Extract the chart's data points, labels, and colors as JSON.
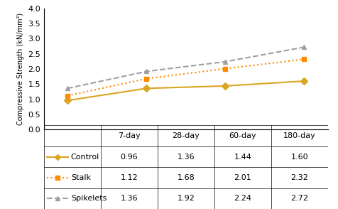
{
  "x_labels": [
    "7-day",
    "28-day",
    "60-day",
    "180-day"
  ],
  "x_positions": [
    0,
    1,
    2,
    3
  ],
  "series": [
    {
      "name": "Control",
      "values": [
        0.96,
        1.36,
        1.44,
        1.6
      ],
      "color": "#DAA520",
      "linestyle": "-",
      "marker": "D",
      "linewidth": 1.5
    },
    {
      "name": "Stalk",
      "values": [
        1.12,
        1.68,
        2.01,
        2.32
      ],
      "color": "#FF8C00",
      "linestyle": ":",
      "marker": "s",
      "linewidth": 1.5
    },
    {
      "name": "Spikelets",
      "values": [
        1.36,
        1.92,
        2.24,
        2.72
      ],
      "color": "#A0A0A0",
      "linestyle": "--",
      "marker": "^",
      "linewidth": 1.5
    }
  ],
  "ylabel": "Compressive Strength (kN/mm²)",
  "ylim": [
    0.0,
    4.0
  ],
  "yticks": [
    0.0,
    0.5,
    1.0,
    1.5,
    2.0,
    2.5,
    3.0,
    3.5,
    4.0
  ],
  "table_rows": [
    [
      "Control",
      "0.96",
      "1.36",
      "1.44",
      "1.60"
    ],
    [
      "Stalk",
      "1.12",
      "1.68",
      "2.01",
      "2.32"
    ],
    [
      "Spikelets",
      "1.36",
      "1.92",
      "2.24",
      "2.72"
    ]
  ],
  "table_col_labels": [
    "7-day",
    "28-day",
    "60-day",
    "180-day"
  ],
  "background_color": "#ffffff",
  "font_size": 8
}
